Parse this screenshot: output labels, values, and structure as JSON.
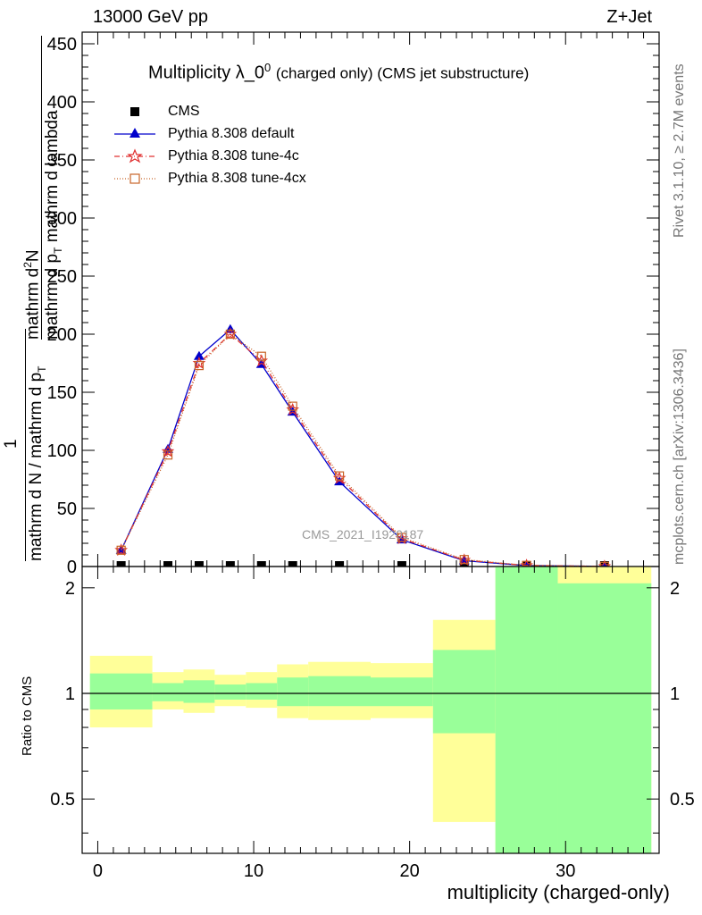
{
  "header": {
    "left": "13000 GeV pp",
    "right": "Z+Jet"
  },
  "side_labels": {
    "rivet": "Rivet 3.1.10, ≥ 2.7M events",
    "mcplots": "mcplots.cern.ch [arXiv:1306.3436]"
  },
  "chart_data": [
    {
      "type": "line",
      "title_main": "Multiplicity λ_0",
      "title_sup": "0",
      "title_tail": "(charged only) (CMS jet substructure)",
      "ylabel": {
        "frac_num_pre": "1",
        "frac_den_1": "mathrm d N / mathrm d p",
        "frac_den_1_sub": "T",
        "frac_den_2": " mathrm d lambda",
        "num": "mathrm d",
        "num_sup": "2",
        "num_tail": "N",
        "den": "mathrm d p",
        "den_sub": "T",
        "den_tail": "mathrm d lambda"
      },
      "ylim": [
        0,
        460
      ],
      "xlim": [
        -1,
        36
      ],
      "yticks": [
        "0",
        "50",
        "100",
        "150",
        "200",
        "250",
        "300",
        "350",
        "400",
        "450"
      ],
      "watermark": "CMS_2021_I1920187",
      "legend_position": "top-left",
      "x": [
        1.5,
        4.5,
        6.5,
        8.5,
        10.5,
        12.5,
        15.5,
        19.5,
        23.5,
        27.5,
        32.5
      ],
      "cms_y": [
        0,
        0,
        0,
        0,
        0,
        0,
        0,
        0,
        0,
        0,
        0
      ],
      "series": [
        {
          "name": "CMS",
          "color": "#000000",
          "marker": "square"
        },
        {
          "name": "Pythia 8.308 default",
          "color": "#0000cc",
          "marker": "triangle",
          "values": [
            14,
            101,
            181,
            204,
            174,
            133,
            73,
            23,
            5,
            0.8,
            0.1
          ]
        },
        {
          "name": "Pythia 8.308 tune-4c",
          "color": "#e03030",
          "marker": "star",
          "values": [
            14,
            99,
            175,
            200,
            177,
            135,
            76,
            24,
            5.5,
            0.9,
            0.1
          ]
        },
        {
          "name": "Pythia 8.308 tune-4cx",
          "color": "#c86428",
          "marker": "open-square",
          "values": [
            14,
            96,
            173,
            200,
            181,
            138,
            78,
            25,
            6,
            1,
            0.15
          ]
        }
      ]
    },
    {
      "type": "area",
      "ylabel": "Ratio to CMS",
      "xlabel": "multiplicity (charged-only)",
      "ylim": [
        0.35,
        2.3
      ],
      "xlim": [
        -1,
        36
      ],
      "yticks": [
        "0.5",
        "1",
        "2"
      ],
      "xticks": [
        "0",
        "10",
        "20",
        "30"
      ],
      "bands": [
        {
          "x": [
            -0.5,
            3.5
          ],
          "yellow": [
            0.8,
            1.28
          ],
          "green": [
            0.9,
            1.14
          ]
        },
        {
          "x": [
            3.5,
            5.5
          ],
          "yellow": [
            0.9,
            1.15
          ],
          "green": [
            0.95,
            1.07
          ]
        },
        {
          "x": [
            5.5,
            7.5
          ],
          "yellow": [
            0.88,
            1.17
          ],
          "green": [
            0.94,
            1.09
          ]
        },
        {
          "x": [
            7.5,
            9.5
          ],
          "yellow": [
            0.92,
            1.13
          ],
          "green": [
            0.96,
            1.06
          ]
        },
        {
          "x": [
            9.5,
            11.5
          ],
          "yellow": [
            0.91,
            1.15
          ],
          "green": [
            0.96,
            1.07
          ]
        },
        {
          "x": [
            11.5,
            13.5
          ],
          "yellow": [
            0.85,
            1.21
          ],
          "green": [
            0.92,
            1.11
          ]
        },
        {
          "x": [
            13.5,
            17.5
          ],
          "yellow": [
            0.84,
            1.23
          ],
          "green": [
            0.92,
            1.12
          ]
        },
        {
          "x": [
            17.5,
            21.5
          ],
          "yellow": [
            0.85,
            1.22
          ],
          "green": [
            0.92,
            1.11
          ]
        },
        {
          "x": [
            21.5,
            25.5
          ],
          "yellow": [
            0.43,
            1.62
          ],
          "green": [
            0.77,
            1.33
          ]
        },
        {
          "x": [
            25.5,
            29.5
          ],
          "yellow": [
            0.35,
            2.3
          ],
          "green": [
            0.35,
            2.3
          ]
        },
        {
          "x": [
            29.5,
            35.5
          ],
          "yellow": [
            0.35,
            2.3
          ],
          "green": [
            0.35,
            2.06
          ]
        }
      ],
      "reference_line": 1
    }
  ],
  "colors": {
    "yellow_band": "#ffff99",
    "green_band": "#99ff99"
  }
}
